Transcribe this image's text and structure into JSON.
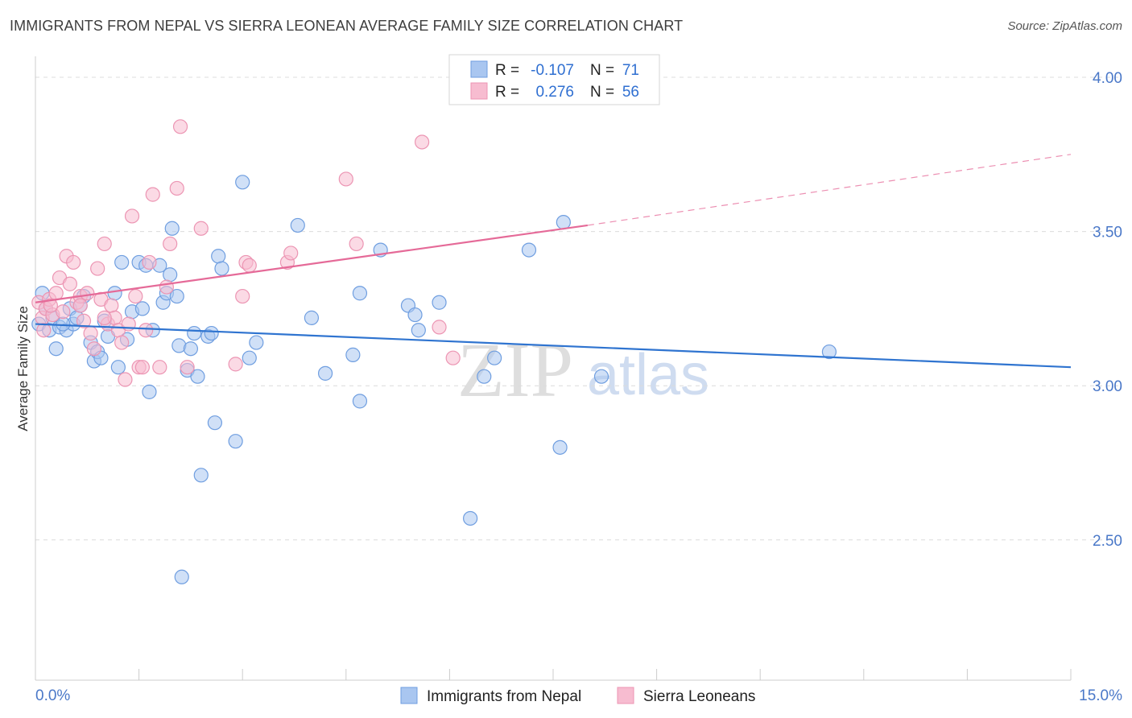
{
  "title": "IMMIGRANTS FROM NEPAL VS SIERRA LEONEAN AVERAGE FAMILY SIZE CORRELATION CHART",
  "source": "Source: ZipAtlas.com",
  "watermark": {
    "zip": "ZIP",
    "atlas": "atlas"
  },
  "colors": {
    "nepal_fill": "#a9c6f0",
    "nepal_stroke": "#6f9ee0",
    "nepal_line": "#2f74d0",
    "sierra_fill": "#f7bcd0",
    "sierra_stroke": "#ec95b3",
    "sierra_line": "#e56a98",
    "tick_color": "#4a78c8",
    "grid": "#dcdcdc"
  },
  "legend": {
    "rows": [
      {
        "r_label": "R =",
        "r_value": "-0.107",
        "n_label": "N =",
        "n_value": "71"
      },
      {
        "r_label": "R =",
        "r_value": "0.276",
        "n_label": "N =",
        "n_value": "56"
      }
    ]
  },
  "chart_data": {
    "type": "scatter",
    "title": "IMMIGRANTS FROM NEPAL VS SIERRA LEONEAN AVERAGE FAMILY SIZE CORRELATION CHART",
    "xlabel": "",
    "ylabel": "Average Family Size",
    "xlim": [
      0,
      15
    ],
    "ylim": [
      2.0,
      4.05
    ],
    "x_tick_labels": [
      "0.0%",
      "15.0%"
    ],
    "y_ticks": [
      2.5,
      3.0,
      3.5,
      4.0
    ],
    "y_tick_labels": [
      "2.50",
      "3.00",
      "3.50",
      "4.00"
    ],
    "grid": true,
    "legend_position": "top-center",
    "series": [
      {
        "name": "Immigrants from Nepal",
        "r": -0.107,
        "n": 71,
        "trend": {
          "x": [
            0.0,
            15.0
          ],
          "y": [
            3.2,
            3.06
          ]
        },
        "points": [
          [
            0.05,
            3.2
          ],
          [
            0.15,
            3.25
          ],
          [
            0.2,
            3.18
          ],
          [
            0.25,
            3.22
          ],
          [
            0.3,
            3.12
          ],
          [
            0.35,
            3.19
          ],
          [
            0.45,
            3.18
          ],
          [
            0.5,
            3.25
          ],
          [
            0.55,
            3.2
          ],
          [
            0.6,
            3.22
          ],
          [
            0.65,
            3.26
          ],
          [
            0.7,
            3.29
          ],
          [
            0.8,
            3.14
          ],
          [
            0.85,
            3.08
          ],
          [
            0.9,
            3.11
          ],
          [
            0.95,
            3.09
          ],
          [
            1.0,
            3.21
          ],
          [
            1.05,
            3.16
          ],
          [
            1.15,
            3.3
          ],
          [
            1.2,
            3.06
          ],
          [
            1.25,
            3.4
          ],
          [
            1.33,
            3.15
          ],
          [
            1.4,
            3.24
          ],
          [
            1.5,
            3.4
          ],
          [
            1.55,
            3.25
          ],
          [
            1.6,
            3.39
          ],
          [
            1.65,
            2.98
          ],
          [
            1.7,
            3.18
          ],
          [
            1.8,
            3.39
          ],
          [
            1.85,
            3.27
          ],
          [
            1.9,
            3.3
          ],
          [
            1.95,
            3.36
          ],
          [
            1.98,
            3.51
          ],
          [
            2.05,
            3.29
          ],
          [
            2.08,
            3.13
          ],
          [
            2.12,
            2.38
          ],
          [
            2.2,
            3.05
          ],
          [
            2.25,
            3.12
          ],
          [
            2.3,
            3.17
          ],
          [
            2.35,
            3.03
          ],
          [
            2.4,
            2.71
          ],
          [
            2.5,
            3.16
          ],
          [
            2.55,
            3.17
          ],
          [
            2.6,
            2.88
          ],
          [
            2.65,
            3.42
          ],
          [
            2.7,
            3.38
          ],
          [
            2.9,
            2.82
          ],
          [
            3.0,
            3.66
          ],
          [
            3.1,
            3.09
          ],
          [
            3.2,
            3.14
          ],
          [
            3.8,
            3.52
          ],
          [
            4.0,
            3.22
          ],
          [
            4.2,
            3.04
          ],
          [
            4.6,
            3.1
          ],
          [
            4.7,
            3.3
          ],
          [
            4.7,
            2.95
          ],
          [
            5.0,
            3.44
          ],
          [
            5.4,
            3.26
          ],
          [
            5.5,
            3.23
          ],
          [
            5.55,
            3.18
          ],
          [
            5.85,
            3.27
          ],
          [
            6.3,
            2.57
          ],
          [
            6.5,
            3.03
          ],
          [
            6.65,
            3.09
          ],
          [
            7.15,
            3.44
          ],
          [
            7.6,
            2.8
          ],
          [
            7.65,
            3.53
          ],
          [
            8.2,
            3.03
          ],
          [
            11.5,
            3.11
          ],
          [
            0.1,
            3.3
          ],
          [
            0.4,
            3.2
          ]
        ]
      },
      {
        "name": "Sierra Leoneans",
        "r": 0.276,
        "n": 56,
        "trend": {
          "x": [
            0.0,
            8.0
          ],
          "y": [
            3.27,
            3.52
          ],
          "dashed_to": [
            15.0,
            3.75
          ]
        },
        "points": [
          [
            0.05,
            3.27
          ],
          [
            0.1,
            3.22
          ],
          [
            0.15,
            3.25
          ],
          [
            0.2,
            3.28
          ],
          [
            0.25,
            3.23
          ],
          [
            0.3,
            3.3
          ],
          [
            0.35,
            3.35
          ],
          [
            0.4,
            3.24
          ],
          [
            0.45,
            3.42
          ],
          [
            0.5,
            3.33
          ],
          [
            0.55,
            3.4
          ],
          [
            0.6,
            3.27
          ],
          [
            0.65,
            3.29
          ],
          [
            0.7,
            3.21
          ],
          [
            0.75,
            3.3
          ],
          [
            0.8,
            3.17
          ],
          [
            0.85,
            3.12
          ],
          [
            0.9,
            3.38
          ],
          [
            0.95,
            3.28
          ],
          [
            1.0,
            3.46
          ],
          [
            1.05,
            3.2
          ],
          [
            1.1,
            3.26
          ],
          [
            1.15,
            3.22
          ],
          [
            1.2,
            3.18
          ],
          [
            1.25,
            3.14
          ],
          [
            1.3,
            3.02
          ],
          [
            1.35,
            3.2
          ],
          [
            1.4,
            3.55
          ],
          [
            1.45,
            3.29
          ],
          [
            1.5,
            3.06
          ],
          [
            1.55,
            3.06
          ],
          [
            1.6,
            3.18
          ],
          [
            1.65,
            3.4
          ],
          [
            1.7,
            3.62
          ],
          [
            1.8,
            3.06
          ],
          [
            1.9,
            3.32
          ],
          [
            1.95,
            3.46
          ],
          [
            2.05,
            3.64
          ],
          [
            2.1,
            3.84
          ],
          [
            2.2,
            3.06
          ],
          [
            2.4,
            3.51
          ],
          [
            2.9,
            3.07
          ],
          [
            3.0,
            3.29
          ],
          [
            3.05,
            3.4
          ],
          [
            3.1,
            3.39
          ],
          [
            3.65,
            3.4
          ],
          [
            3.7,
            3.43
          ],
          [
            4.5,
            3.67
          ],
          [
            4.65,
            3.46
          ],
          [
            5.6,
            3.79
          ],
          [
            5.85,
            3.19
          ],
          [
            6.05,
            3.09
          ],
          [
            0.12,
            3.18
          ],
          [
            0.22,
            3.26
          ],
          [
            0.65,
            3.26
          ],
          [
            1.0,
            3.22
          ]
        ]
      }
    ]
  }
}
